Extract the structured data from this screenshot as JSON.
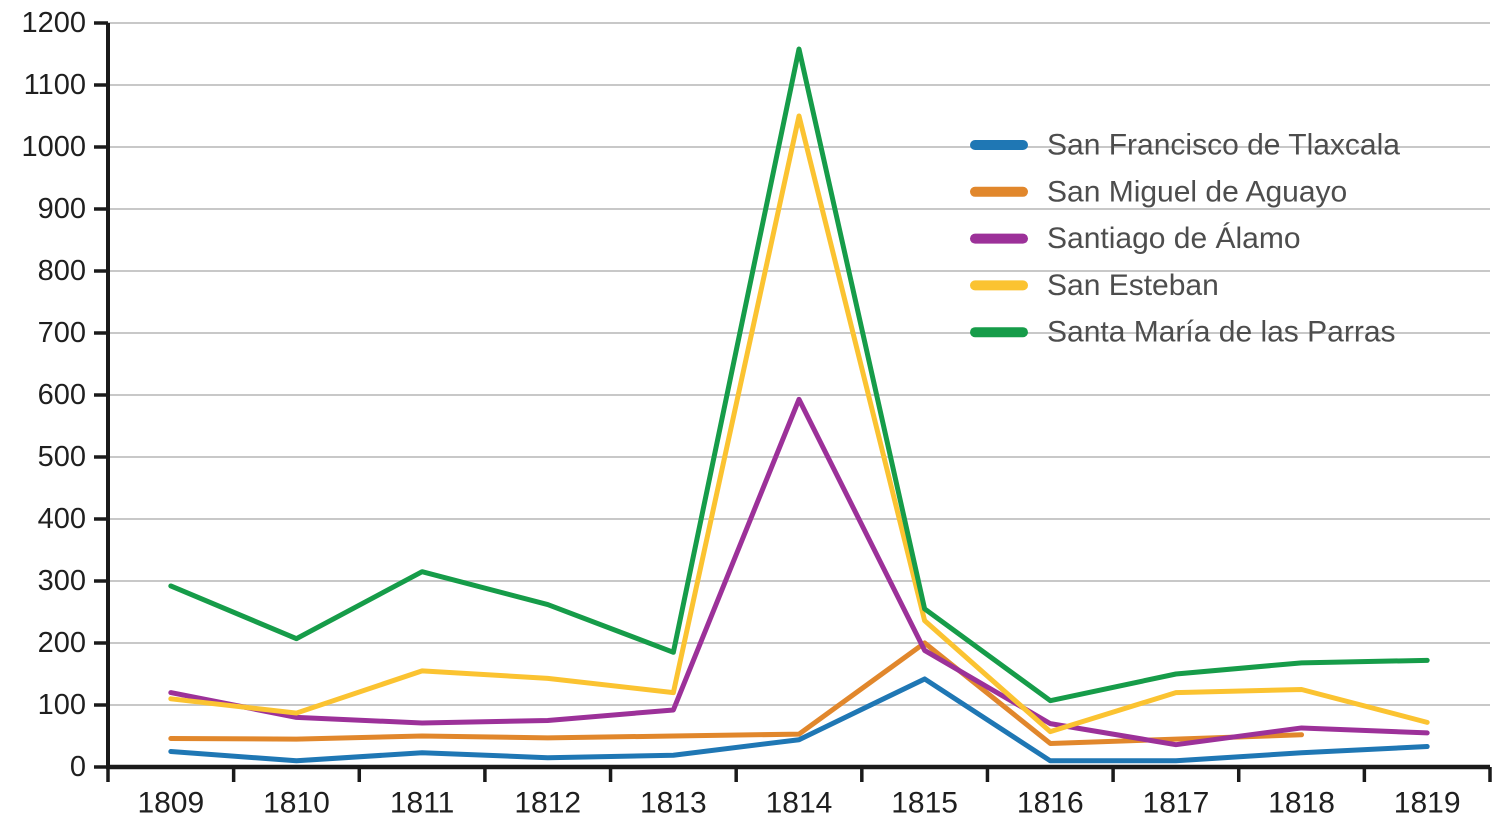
{
  "chart_data": {
    "type": "line",
    "title": "",
    "xlabel": "",
    "ylabel": "",
    "categories": [
      1809,
      1810,
      1811,
      1812,
      1813,
      1814,
      1815,
      1816,
      1817,
      1818,
      1819
    ],
    "series": [
      {
        "name": "San Francisco de Tlaxcala",
        "color": "#1f77b4",
        "values": [
          25,
          10,
          23,
          15,
          19,
          44,
          142,
          10,
          10,
          23,
          33
        ]
      },
      {
        "name": "San Miguel de Aguayo",
        "color": "#e1872c",
        "values": [
          46,
          45,
          50,
          47,
          50,
          53,
          200,
          38,
          45,
          52,
          null
        ]
      },
      {
        "name": "Santiago de Álamo",
        "color": "#9c3199",
        "values": [
          120,
          80,
          71,
          75,
          92,
          593,
          188,
          70,
          36,
          63,
          55
        ]
      },
      {
        "name": "San Esteban",
        "color": "#fbc331",
        "values": [
          110,
          87,
          155,
          143,
          120,
          1050,
          236,
          57,
          120,
          125,
          72
        ]
      },
      {
        "name": "Santa María de las Parras",
        "color": "#169c49",
        "values": [
          292,
          207,
          315,
          262,
          185,
          1158,
          255,
          107,
          150,
          168,
          172
        ]
      }
    ],
    "ylim": [
      0,
      1200
    ],
    "ytick_step": 100,
    "yticks": [
      0,
      100,
      200,
      300,
      400,
      500,
      600,
      700,
      800,
      900,
      1000,
      1100,
      1200
    ],
    "grid": "horizontal",
    "legend_position": "inside-top-right",
    "legend_entries": [
      "San Francisco de Tlaxcala",
      "San Miguel de Aguayo",
      "Santiago de Álamo",
      "San Esteban",
      "Santa María de las Parras"
    ]
  },
  "style": {
    "axis_color": "#1a1a1a",
    "grid_color": "#c8c8c8",
    "tick_label_color": "#1f1f1f",
    "legend_text_color": "#4d4d4d",
    "background": "#ffffff"
  }
}
